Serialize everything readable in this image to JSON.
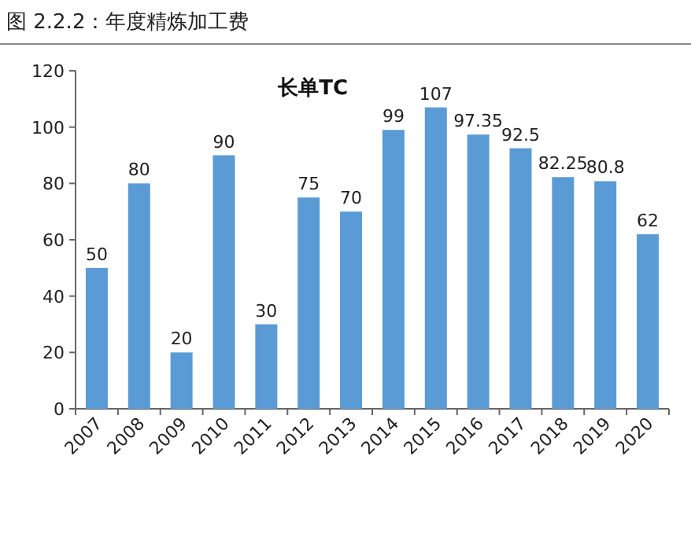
{
  "chart_data": {
    "type": "bar",
    "title": "图 2.2.2：年度精炼加工费",
    "subtitle": "长单TC",
    "categories": [
      "2007",
      "2008",
      "2009",
      "2010",
      "2011",
      "2012",
      "2013",
      "2014",
      "2015",
      "2016",
      "2017",
      "2018",
      "2019",
      "2020"
    ],
    "series": [
      {
        "color": "#5b9bd5",
        "values": [
          50,
          80,
          20,
          90,
          30,
          75,
          70,
          99,
          107,
          97.35,
          92.5,
          82.25,
          80.8,
          62
        ]
      }
    ],
    "ylim": [
      0,
      120
    ],
    "yticks": [
      0,
      20,
      40,
      60,
      80,
      100,
      120
    ],
    "data_labels": true
  }
}
